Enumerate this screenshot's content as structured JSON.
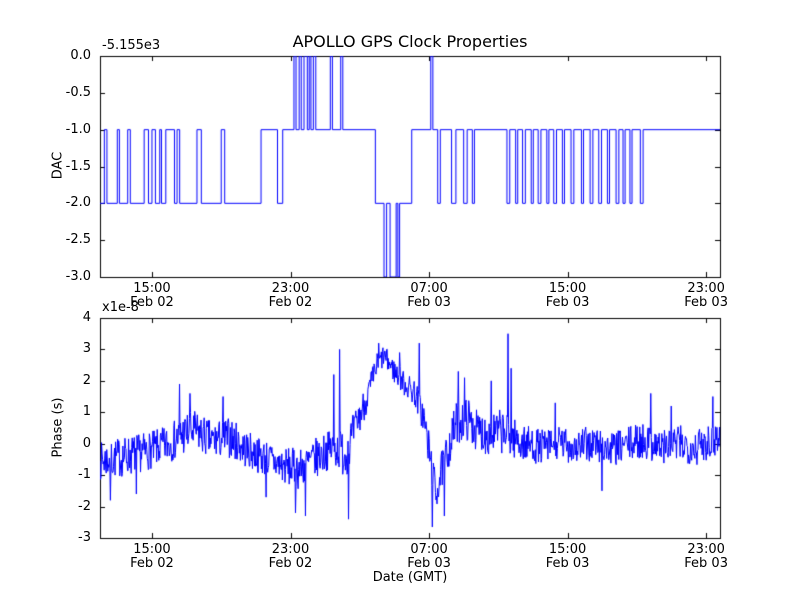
{
  "background": "#ffffff",
  "axes_color": "#000000",
  "chart_data": [
    {
      "type": "line",
      "title": "APOLLO GPS Clock Properties",
      "ylabel": "DAC",
      "offset_text": "-5.155e3",
      "xlim": [
        0,
        35.8
      ],
      "ylim": [
        -3,
        0
      ],
      "yticks": [
        0,
        -0.5,
        -1,
        -1.5,
        -2,
        -2.5,
        -3
      ],
      "ytick_labels": [
        "0.0",
        "-0.5",
        "-1.0",
        "-1.5",
        "-2.0",
        "-2.5",
        "-3.0"
      ],
      "xticks": [
        {
          "t": 3,
          "line1": "15:00",
          "line2": "Feb 02"
        },
        {
          "t": 11,
          "line1": "23:00",
          "line2": "Feb 02"
        },
        {
          "t": 19,
          "line1": "07:00",
          "line2": "Feb 03"
        },
        {
          "t": 27,
          "line1": "15:00",
          "line2": "Feb 03"
        },
        {
          "t": 35,
          "line1": "23:00",
          "line2": "Feb 03"
        }
      ],
      "line_color": "#0000ff",
      "steps": [
        [
          0,
          -2
        ],
        [
          0.25,
          -1
        ],
        [
          0.4,
          -2
        ],
        [
          1.0,
          -1
        ],
        [
          1.12,
          -2
        ],
        [
          1.6,
          -1
        ],
        [
          1.75,
          -2
        ],
        [
          2.55,
          -1
        ],
        [
          2.8,
          -2
        ],
        [
          3.0,
          -1
        ],
        [
          3.2,
          -2
        ],
        [
          3.45,
          -1
        ],
        [
          3.55,
          -2
        ],
        [
          3.8,
          -1
        ],
        [
          4.3,
          -2
        ],
        [
          4.45,
          -1
        ],
        [
          4.6,
          -2
        ],
        [
          5.6,
          -1
        ],
        [
          5.85,
          -2
        ],
        [
          7.0,
          -1
        ],
        [
          7.2,
          -2
        ],
        [
          9.3,
          -1
        ],
        [
          10.25,
          -2
        ],
        [
          10.55,
          -1
        ],
        [
          11.2,
          0
        ],
        [
          11.32,
          -1
        ],
        [
          11.5,
          0
        ],
        [
          11.62,
          -1
        ],
        [
          11.78,
          0
        ],
        [
          11.97,
          -1
        ],
        [
          12.08,
          0
        ],
        [
          12.18,
          -1
        ],
        [
          12.32,
          0
        ],
        [
          12.46,
          -1
        ],
        [
          13.3,
          0
        ],
        [
          13.42,
          -1
        ],
        [
          13.9,
          0
        ],
        [
          14.02,
          -1
        ],
        [
          15.9,
          -2
        ],
        [
          16.4,
          -3
        ],
        [
          16.55,
          -2
        ],
        [
          16.75,
          -3
        ],
        [
          17.1,
          -2
        ],
        [
          17.2,
          -3
        ],
        [
          17.3,
          -2
        ],
        [
          18.0,
          -1
        ],
        [
          19.1,
          0
        ],
        [
          19.22,
          -1
        ],
        [
          19.5,
          -2
        ],
        [
          19.65,
          -1
        ],
        [
          20.3,
          -2
        ],
        [
          20.55,
          -1
        ],
        [
          21.0,
          -2
        ],
        [
          21.2,
          -1
        ],
        [
          21.5,
          -2
        ],
        [
          21.62,
          -1
        ],
        [
          23.5,
          -2
        ],
        [
          23.66,
          -1
        ],
        [
          24.0,
          -2
        ],
        [
          24.12,
          -1
        ],
        [
          24.4,
          -2
        ],
        [
          24.56,
          -1
        ],
        [
          24.9,
          -2
        ],
        [
          25.02,
          -1
        ],
        [
          25.3,
          -2
        ],
        [
          25.46,
          -1
        ],
        [
          25.8,
          -2
        ],
        [
          25.92,
          -1
        ],
        [
          26.2,
          -2
        ],
        [
          26.36,
          -1
        ],
        [
          26.7,
          -2
        ],
        [
          26.82,
          -1
        ],
        [
          27.2,
          -2
        ],
        [
          27.36,
          -1
        ],
        [
          27.8,
          -2
        ],
        [
          27.92,
          -1
        ],
        [
          28.3,
          -2
        ],
        [
          28.46,
          -1
        ],
        [
          28.8,
          -2
        ],
        [
          28.96,
          -1
        ],
        [
          29.3,
          -2
        ],
        [
          29.42,
          -1
        ],
        [
          29.8,
          -2
        ],
        [
          29.96,
          -1
        ],
        [
          30.2,
          -2
        ],
        [
          30.32,
          -1
        ],
        [
          30.6,
          -2
        ],
        [
          30.72,
          -1
        ],
        [
          31.2,
          -2
        ],
        [
          31.36,
          -1
        ]
      ]
    },
    {
      "type": "line",
      "ylabel": "Phase (s)",
      "xlabel": "Date (GMT)",
      "offset_text": "x1e-8",
      "xlim": [
        0,
        35.8
      ],
      "ylim": [
        -3,
        4
      ],
      "yticks": [
        4,
        3,
        2,
        1,
        0,
        -1,
        -2,
        -3
      ],
      "ytick_labels": [
        "4",
        "3",
        "2",
        "1",
        "0",
        "-1",
        "-2",
        "-3"
      ],
      "xticks": [
        {
          "t": 3,
          "line1": "15:00",
          "line2": "Feb 02"
        },
        {
          "t": 11,
          "line1": "23:00",
          "line2": "Feb 02"
        },
        {
          "t": 19,
          "line1": "07:00",
          "line2": "Feb 03"
        },
        {
          "t": 27,
          "line1": "15:00",
          "line2": "Feb 03"
        },
        {
          "t": 35,
          "line1": "23:00",
          "line2": "Feb 03"
        }
      ],
      "line_color": "#0000ff",
      "noise_seed": 7,
      "sample_step_hours": 0.03,
      "anchors": [
        [
          0,
          -0.55,
          0.6
        ],
        [
          1.5,
          -0.4,
          0.65
        ],
        [
          3,
          -0.2,
          0.6
        ],
        [
          4,
          0,
          0.6
        ],
        [
          4.8,
          0.3,
          0.7
        ],
        [
          5.5,
          0.4,
          0.65
        ],
        [
          6.5,
          0.1,
          0.6
        ],
        [
          7.5,
          0.2,
          0.65
        ],
        [
          8.5,
          -0.2,
          0.6
        ],
        [
          9.5,
          -0.45,
          0.6
        ],
        [
          10.5,
          -0.7,
          0.6
        ],
        [
          11.5,
          -0.8,
          0.65
        ],
        [
          12.5,
          -0.45,
          0.65
        ],
        [
          13.5,
          -0.1,
          0.6
        ],
        [
          14.2,
          -0.3,
          0.8
        ],
        [
          14.8,
          0.6,
          0.55
        ],
        [
          15.5,
          1.6,
          0.5
        ],
        [
          16.0,
          2.5,
          0.4
        ],
        [
          16.4,
          2.8,
          0.35
        ],
        [
          17.0,
          2.3,
          0.4
        ],
        [
          17.6,
          1.9,
          0.4
        ],
        [
          18.2,
          1.6,
          0.45
        ],
        [
          18.7,
          0.8,
          0.55
        ],
        [
          19.1,
          -0.6,
          0.7
        ],
        [
          19.4,
          -1.6,
          0.55
        ],
        [
          19.7,
          -0.9,
          0.6
        ],
        [
          20.1,
          -0.2,
          0.65
        ],
        [
          20.6,
          0.7,
          0.7
        ],
        [
          21.2,
          0.8,
          0.7
        ],
        [
          21.8,
          0.4,
          0.65
        ],
        [
          22.5,
          0.3,
          0.7
        ],
        [
          23.2,
          0.4,
          0.7
        ],
        [
          23.8,
          0.2,
          0.65
        ],
        [
          24.5,
          0,
          0.6
        ],
        [
          25.5,
          -0.1,
          0.55
        ],
        [
          26.5,
          0,
          0.55
        ],
        [
          27.5,
          -0.1,
          0.55
        ],
        [
          28.5,
          0,
          0.6
        ],
        [
          29.5,
          -0.2,
          0.55
        ],
        [
          30.5,
          0,
          0.55
        ],
        [
          31.5,
          0.1,
          0.6
        ],
        [
          32.5,
          -0.1,
          0.55
        ],
        [
          33.5,
          0,
          0.6
        ],
        [
          34.5,
          -0.1,
          0.6
        ],
        [
          35.3,
          0.2,
          0.65
        ],
        [
          35.8,
          0.2,
          0.6
        ]
      ],
      "spikes": [
        [
          0.6,
          -1.8
        ],
        [
          2.1,
          -1.6
        ],
        [
          4.6,
          1.9
        ],
        [
          5.2,
          1.6
        ],
        [
          7.1,
          1.5
        ],
        [
          9.6,
          -1.7
        ],
        [
          11.3,
          -2.2
        ],
        [
          11.85,
          -2.3
        ],
        [
          13.5,
          2.2
        ],
        [
          13.85,
          3.0
        ],
        [
          14.35,
          -2.4
        ],
        [
          16.1,
          3.2
        ],
        [
          17.3,
          2.9
        ],
        [
          18.45,
          3.2
        ],
        [
          19.2,
          -2.65
        ],
        [
          19.9,
          -2.3
        ],
        [
          20.7,
          2.3
        ],
        [
          21.05,
          2.1
        ],
        [
          22.6,
          2.0
        ],
        [
          23.55,
          3.5
        ],
        [
          23.75,
          2.4
        ],
        [
          26.3,
          1.3
        ],
        [
          29.0,
          -1.5
        ],
        [
          31.8,
          1.6
        ],
        [
          33.0,
          1.2
        ],
        [
          35.4,
          1.5
        ]
      ]
    }
  ]
}
